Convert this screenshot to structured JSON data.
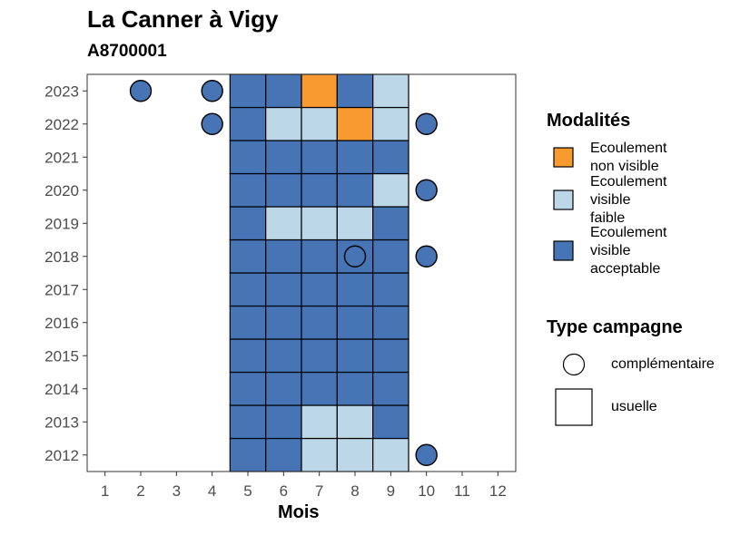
{
  "chart_data": {
    "type": "heatmap",
    "title": "La Canner à Vigy",
    "subtitle": "A8700001",
    "xlabel": "Mois",
    "ylabel": "",
    "x_ticks": [
      "1",
      "2",
      "3",
      "4",
      "5",
      "6",
      "7",
      "8",
      "9",
      "10",
      "11",
      "12"
    ],
    "y_ticks": [
      "2012",
      "2013",
      "2014",
      "2015",
      "2016",
      "2017",
      "2018",
      "2019",
      "2020",
      "2021",
      "2022",
      "2023"
    ],
    "xlim": [
      0.5,
      12.5
    ],
    "ylim": [
      2011.5,
      2023.5
    ],
    "modalities": [
      {
        "key": "nv",
        "label": [
          "Ecoulement",
          "non visible"
        ],
        "color": "#f89a2f"
      },
      {
        "key": "vf",
        "label": [
          "Ecoulement",
          "visible",
          "faible"
        ],
        "color": "#bcd7e8"
      },
      {
        "key": "va",
        "label": [
          "Ecoulement",
          "visible",
          "acceptable"
        ],
        "color": "#4674b5"
      }
    ],
    "campaign_types": [
      {
        "key": "complementaire",
        "label": "complémentaire",
        "shape": "circle"
      },
      {
        "key": "usuelle",
        "label": "usuelle",
        "shape": "square"
      }
    ],
    "legend_titles": {
      "modalities": "Modalités",
      "campaign": "Type campagne"
    },
    "legend_position": "right",
    "grid": false,
    "cells": [
      {
        "year": 2012,
        "month": 5,
        "mod": "va",
        "type": "usuelle"
      },
      {
        "year": 2012,
        "month": 6,
        "mod": "va",
        "type": "usuelle"
      },
      {
        "year": 2012,
        "month": 7,
        "mod": "vf",
        "type": "usuelle"
      },
      {
        "year": 2012,
        "month": 8,
        "mod": "vf",
        "type": "usuelle"
      },
      {
        "year": 2012,
        "month": 9,
        "mod": "vf",
        "type": "usuelle"
      },
      {
        "year": 2012,
        "month": 10,
        "mod": "va",
        "type": "complementaire"
      },
      {
        "year": 2013,
        "month": 5,
        "mod": "va",
        "type": "usuelle"
      },
      {
        "year": 2013,
        "month": 6,
        "mod": "va",
        "type": "usuelle"
      },
      {
        "year": 2013,
        "month": 7,
        "mod": "vf",
        "type": "usuelle"
      },
      {
        "year": 2013,
        "month": 8,
        "mod": "vf",
        "type": "usuelle"
      },
      {
        "year": 2013,
        "month": 9,
        "mod": "va",
        "type": "usuelle"
      },
      {
        "year": 2014,
        "month": 5,
        "mod": "va",
        "type": "usuelle"
      },
      {
        "year": 2014,
        "month": 6,
        "mod": "va",
        "type": "usuelle"
      },
      {
        "year": 2014,
        "month": 7,
        "mod": "va",
        "type": "usuelle"
      },
      {
        "year": 2014,
        "month": 8,
        "mod": "va",
        "type": "usuelle"
      },
      {
        "year": 2014,
        "month": 9,
        "mod": "va",
        "type": "usuelle"
      },
      {
        "year": 2015,
        "month": 5,
        "mod": "va",
        "type": "usuelle"
      },
      {
        "year": 2015,
        "month": 6,
        "mod": "va",
        "type": "usuelle"
      },
      {
        "year": 2015,
        "month": 7,
        "mod": "va",
        "type": "usuelle"
      },
      {
        "year": 2015,
        "month": 8,
        "mod": "va",
        "type": "usuelle"
      },
      {
        "year": 2015,
        "month": 9,
        "mod": "va",
        "type": "usuelle"
      },
      {
        "year": 2016,
        "month": 5,
        "mod": "va",
        "type": "usuelle"
      },
      {
        "year": 2016,
        "month": 6,
        "mod": "va",
        "type": "usuelle"
      },
      {
        "year": 2016,
        "month": 7,
        "mod": "va",
        "type": "usuelle"
      },
      {
        "year": 2016,
        "month": 8,
        "mod": "va",
        "type": "usuelle"
      },
      {
        "year": 2016,
        "month": 9,
        "mod": "va",
        "type": "usuelle"
      },
      {
        "year": 2017,
        "month": 5,
        "mod": "va",
        "type": "usuelle"
      },
      {
        "year": 2017,
        "month": 6,
        "mod": "va",
        "type": "usuelle"
      },
      {
        "year": 2017,
        "month": 7,
        "mod": "va",
        "type": "usuelle"
      },
      {
        "year": 2017,
        "month": 8,
        "mod": "va",
        "type": "usuelle"
      },
      {
        "year": 2017,
        "month": 9,
        "mod": "va",
        "type": "usuelle"
      },
      {
        "year": 2018,
        "month": 5,
        "mod": "va",
        "type": "usuelle"
      },
      {
        "year": 2018,
        "month": 6,
        "mod": "va",
        "type": "usuelle"
      },
      {
        "year": 2018,
        "month": 7,
        "mod": "va",
        "type": "usuelle"
      },
      {
        "year": 2018,
        "month": 8,
        "mod": "va",
        "type": "usuelle"
      },
      {
        "year": 2018,
        "month": 8,
        "mod": "va",
        "type": "complementaire"
      },
      {
        "year": 2018,
        "month": 9,
        "mod": "va",
        "type": "usuelle"
      },
      {
        "year": 2018,
        "month": 10,
        "mod": "va",
        "type": "complementaire"
      },
      {
        "year": 2019,
        "month": 5,
        "mod": "va",
        "type": "usuelle"
      },
      {
        "year": 2019,
        "month": 6,
        "mod": "vf",
        "type": "usuelle"
      },
      {
        "year": 2019,
        "month": 7,
        "mod": "vf",
        "type": "usuelle"
      },
      {
        "year": 2019,
        "month": 8,
        "mod": "vf",
        "type": "usuelle"
      },
      {
        "year": 2019,
        "month": 9,
        "mod": "va",
        "type": "usuelle"
      },
      {
        "year": 2020,
        "month": 5,
        "mod": "va",
        "type": "usuelle"
      },
      {
        "year": 2020,
        "month": 6,
        "mod": "va",
        "type": "usuelle"
      },
      {
        "year": 2020,
        "month": 7,
        "mod": "va",
        "type": "usuelle"
      },
      {
        "year": 2020,
        "month": 8,
        "mod": "va",
        "type": "usuelle"
      },
      {
        "year": 2020,
        "month": 9,
        "mod": "vf",
        "type": "usuelle"
      },
      {
        "year": 2020,
        "month": 10,
        "mod": "va",
        "type": "complementaire"
      },
      {
        "year": 2021,
        "month": 5,
        "mod": "va",
        "type": "usuelle"
      },
      {
        "year": 2021,
        "month": 6,
        "mod": "va",
        "type": "usuelle"
      },
      {
        "year": 2021,
        "month": 7,
        "mod": "va",
        "type": "usuelle"
      },
      {
        "year": 2021,
        "month": 8,
        "mod": "va",
        "type": "usuelle"
      },
      {
        "year": 2021,
        "month": 9,
        "mod": "va",
        "type": "usuelle"
      },
      {
        "year": 2022,
        "month": 4,
        "mod": "va",
        "type": "complementaire"
      },
      {
        "year": 2022,
        "month": 5,
        "mod": "va",
        "type": "usuelle"
      },
      {
        "year": 2022,
        "month": 6,
        "mod": "vf",
        "type": "usuelle"
      },
      {
        "year": 2022,
        "month": 7,
        "mod": "vf",
        "type": "usuelle"
      },
      {
        "year": 2022,
        "month": 8,
        "mod": "nv",
        "type": "usuelle"
      },
      {
        "year": 2022,
        "month": 9,
        "mod": "vf",
        "type": "usuelle"
      },
      {
        "year": 2022,
        "month": 10,
        "mod": "va",
        "type": "complementaire"
      },
      {
        "year": 2023,
        "month": 2,
        "mod": "va",
        "type": "complementaire"
      },
      {
        "year": 2023,
        "month": 4,
        "mod": "va",
        "type": "complementaire"
      },
      {
        "year": 2023,
        "month": 5,
        "mod": "va",
        "type": "usuelle"
      },
      {
        "year": 2023,
        "month": 6,
        "mod": "va",
        "type": "usuelle"
      },
      {
        "year": 2023,
        "month": 7,
        "mod": "nv",
        "type": "usuelle"
      },
      {
        "year": 2023,
        "month": 8,
        "mod": "va",
        "type": "usuelle"
      },
      {
        "year": 2023,
        "month": 9,
        "mod": "vf",
        "type": "usuelle"
      }
    ]
  }
}
